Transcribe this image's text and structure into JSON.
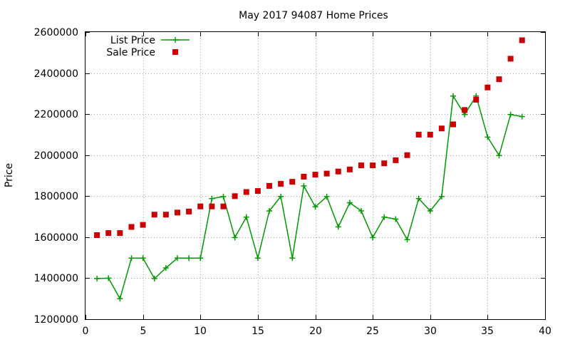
{
  "chart_data": {
    "type": "scatter",
    "title": "May 2017 94087 Home Prices",
    "xlabel": "",
    "ylabel": "Price",
    "xlim": [
      0,
      40
    ],
    "ylim": [
      1200000,
      2600000
    ],
    "xticks": [
      0,
      5,
      10,
      15,
      20,
      25,
      30,
      35,
      40
    ],
    "yticks": [
      1200000,
      1400000,
      1600000,
      1800000,
      2000000,
      2200000,
      2400000,
      2600000
    ],
    "grid": true,
    "legend_position": "top-left",
    "series": [
      {
        "name": "List Price",
        "kind": "line-with-plus-markers",
        "color": "#009900",
        "x": [
          1,
          2,
          3,
          4,
          5,
          6,
          7,
          8,
          9,
          10,
          11,
          12,
          13,
          14,
          15,
          16,
          17,
          18,
          19,
          20,
          21,
          22,
          23,
          24,
          25,
          26,
          27,
          28,
          29,
          30,
          31,
          32,
          33,
          34,
          35,
          36,
          37,
          38
        ],
        "y": [
          1398000,
          1400000,
          1300000,
          1498000,
          1498000,
          1398000,
          1450000,
          1498000,
          1498000,
          1498000,
          1788000,
          1798000,
          1598000,
          1698000,
          1498000,
          1728000,
          1798000,
          1498000,
          1850000,
          1748000,
          1798000,
          1650000,
          1768000,
          1728000,
          1598000,
          1698000,
          1688000,
          1588000,
          1788000,
          1728000,
          1798000,
          2288000,
          2198000,
          2288000,
          2088000,
          1998000,
          2198000,
          2188000
        ]
      },
      {
        "name": "Sale Price",
        "kind": "square-markers",
        "color": "#cc0000",
        "x": [
          1,
          2,
          3,
          4,
          5,
          6,
          7,
          8,
          9,
          10,
          11,
          12,
          13,
          14,
          15,
          16,
          17,
          18,
          19,
          20,
          21,
          22,
          23,
          24,
          25,
          26,
          27,
          28,
          29,
          30,
          31,
          32,
          33,
          34,
          35,
          36,
          37,
          38
        ],
        "y": [
          1610000,
          1620000,
          1620000,
          1650000,
          1660000,
          1710000,
          1710000,
          1720000,
          1725000,
          1750000,
          1750000,
          1750000,
          1800000,
          1820000,
          1825000,
          1850000,
          1860000,
          1870000,
          1895000,
          1905000,
          1910000,
          1920000,
          1930000,
          1950000,
          1950000,
          1960000,
          1975000,
          2000000,
          2100000,
          2100000,
          2130000,
          2150000,
          2220000,
          2270000,
          2330000,
          2370000,
          2470000,
          2560000
        ]
      }
    ]
  }
}
